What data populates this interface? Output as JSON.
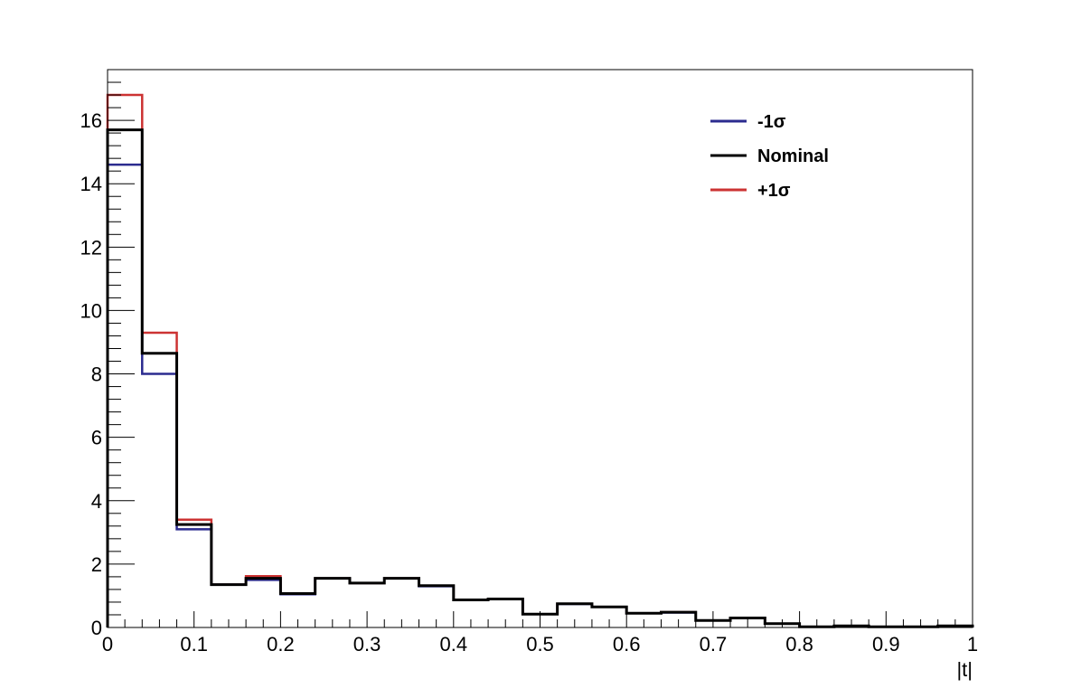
{
  "chart_data": {
    "type": "histogram",
    "title": "",
    "xlabel": "|t|",
    "ylabel": "",
    "xlim": [
      0,
      1
    ],
    "ylim": [
      0,
      17.6
    ],
    "grid": false,
    "legend_position": "top-right",
    "x_ticks": [
      "0",
      "0.1",
      "0.2",
      "0.3",
      "0.4",
      "0.5",
      "0.6",
      "0.7",
      "0.8",
      "0.9",
      "1"
    ],
    "y_ticks": [
      "0",
      "2",
      "4",
      "6",
      "8",
      "10",
      "12",
      "14",
      "16"
    ],
    "bin_edges": [
      0,
      0.04,
      0.08,
      0.12,
      0.16,
      0.2,
      0.24,
      0.28,
      0.32,
      0.36,
      0.4,
      0.44,
      0.48,
      0.52,
      0.56,
      0.6,
      0.64,
      0.68,
      0.72,
      0.76,
      0.8,
      0.84,
      0.88,
      0.92,
      0.96,
      1.0
    ],
    "series": [
      {
        "name": "-1σ",
        "color": "#2b2b8f",
        "values": [
          14.6,
          8.0,
          3.1,
          1.35,
          1.5,
          1.05,
          1.55,
          1.4,
          1.55,
          1.3,
          0.87,
          0.9,
          0.42,
          0.74,
          0.65,
          0.45,
          0.47,
          0.22,
          0.3,
          0.12,
          0.02,
          0.05,
          0.02,
          0.02,
          0.05
        ]
      },
      {
        "name": "Nominal",
        "color": "#000000",
        "values": [
          15.7,
          8.65,
          3.25,
          1.35,
          1.55,
          1.07,
          1.55,
          1.4,
          1.55,
          1.32,
          0.87,
          0.9,
          0.42,
          0.75,
          0.65,
          0.45,
          0.48,
          0.22,
          0.3,
          0.12,
          0.02,
          0.05,
          0.02,
          0.02,
          0.05
        ]
      },
      {
        "name": "+1σ",
        "color": "#cc3333",
        "values": [
          16.8,
          9.3,
          3.4,
          1.35,
          1.62,
          1.07,
          1.55,
          1.4,
          1.55,
          1.32,
          0.87,
          0.9,
          0.42,
          0.75,
          0.65,
          0.45,
          0.48,
          0.22,
          0.3,
          0.12,
          0.02,
          0.05,
          0.02,
          0.02,
          0.05
        ]
      }
    ]
  }
}
